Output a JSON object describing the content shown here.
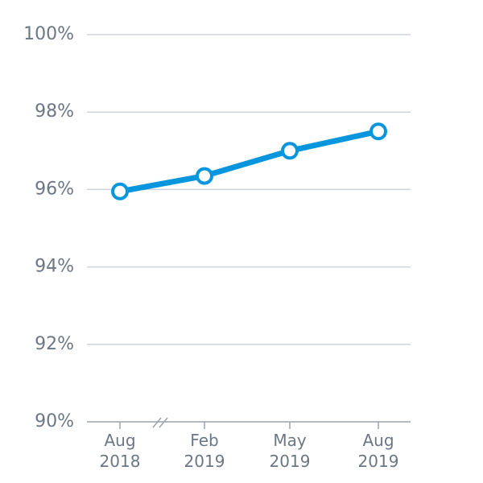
{
  "chart_data": {
    "type": "line",
    "categories": [
      "Aug 2018",
      "Feb 2019",
      "May 2019",
      "Aug 2019"
    ],
    "series": [
      {
        "color": "#0796dd",
        "values": [
          95.95,
          96.35,
          97.0,
          97.5
        ]
      }
    ],
    "ylim": [
      90,
      100
    ],
    "yticks": [
      {
        "value": 90,
        "label": "90%"
      },
      {
        "value": 92,
        "label": "92%"
      },
      {
        "value": 94,
        "label": "94%"
      },
      {
        "value": 96,
        "label": "96%"
      },
      {
        "value": 98,
        "label": "98%"
      },
      {
        "value": 100,
        "label": "100%"
      }
    ],
    "grid": true
  }
}
